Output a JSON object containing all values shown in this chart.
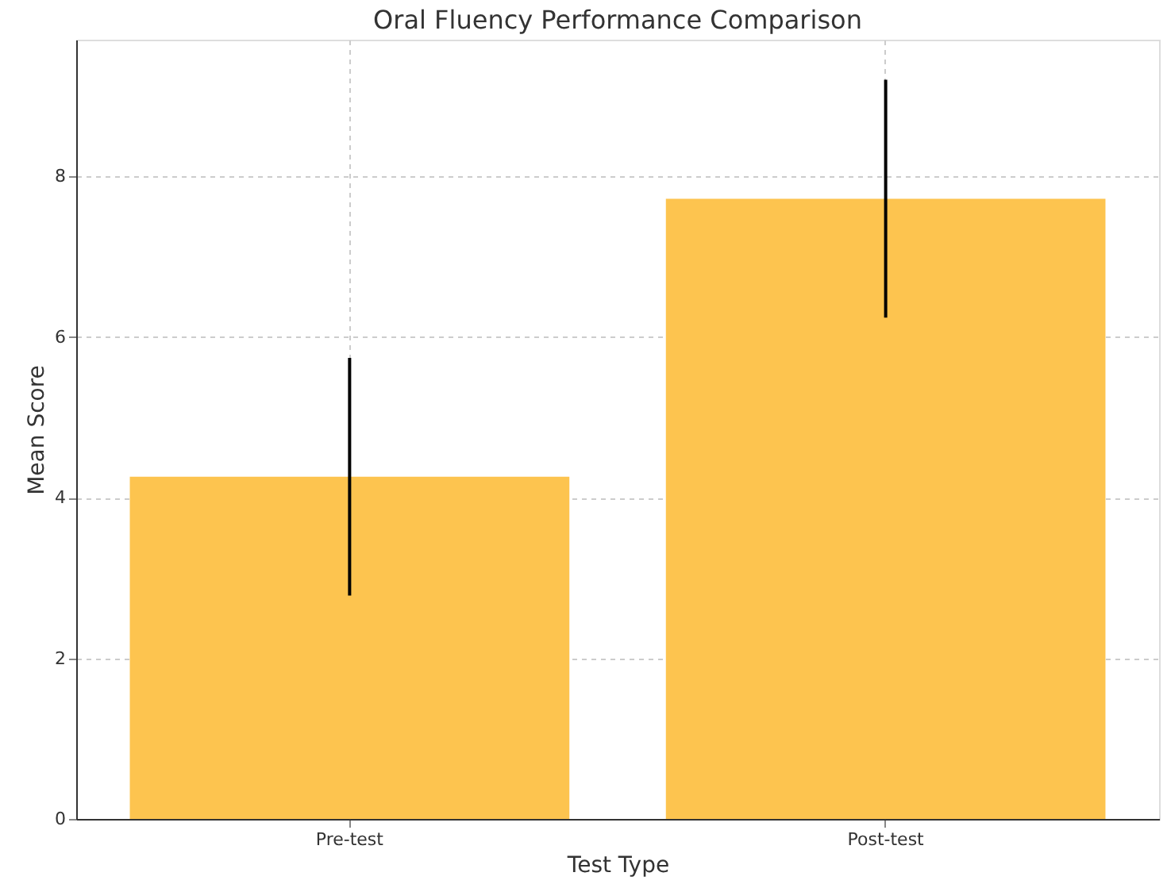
{
  "chart_data": {
    "type": "bar",
    "title": "Oral Fluency Performance Comparison",
    "xlabel": "Test Type",
    "ylabel": "Mean Score",
    "categories": [
      "Pre-test",
      "Post-test"
    ],
    "values": [
      4.26,
      7.72
    ],
    "errors": [
      1.48,
      1.48
    ],
    "color": "#fdc44f",
    "ylim": [
      0,
      9.7
    ],
    "yticks": [
      0,
      2,
      4,
      6,
      8
    ],
    "grid": true
  }
}
